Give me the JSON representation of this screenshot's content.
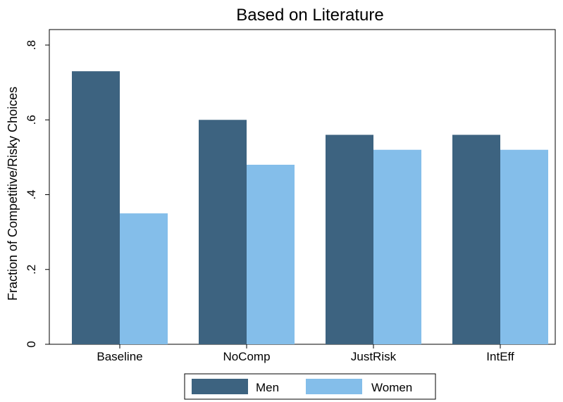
{
  "chart_data": {
    "type": "bar",
    "title": "Based on Literature",
    "xlabel": "",
    "ylabel": "Fraction of Competitive/Risky Choices",
    "categories": [
      "Baseline",
      "NoComp",
      "JustRisk",
      "IntEff"
    ],
    "series": [
      {
        "name": "Men",
        "values": [
          0.73,
          0.6,
          0.56,
          0.56
        ]
      },
      {
        "name": "Women",
        "values": [
          0.35,
          0.48,
          0.52,
          0.52
        ]
      }
    ],
    "ylim": [
      0,
      0.8
    ],
    "yticks": [
      0,
      0.2,
      0.4,
      0.6,
      0.8
    ],
    "ytick_labels": [
      "0",
      ".2",
      ".4",
      ".6",
      ".8"
    ],
    "grid": false,
    "legend_position": "bottom",
    "colors": {
      "Men": "#3d6380",
      "Women": "#84beea"
    }
  }
}
